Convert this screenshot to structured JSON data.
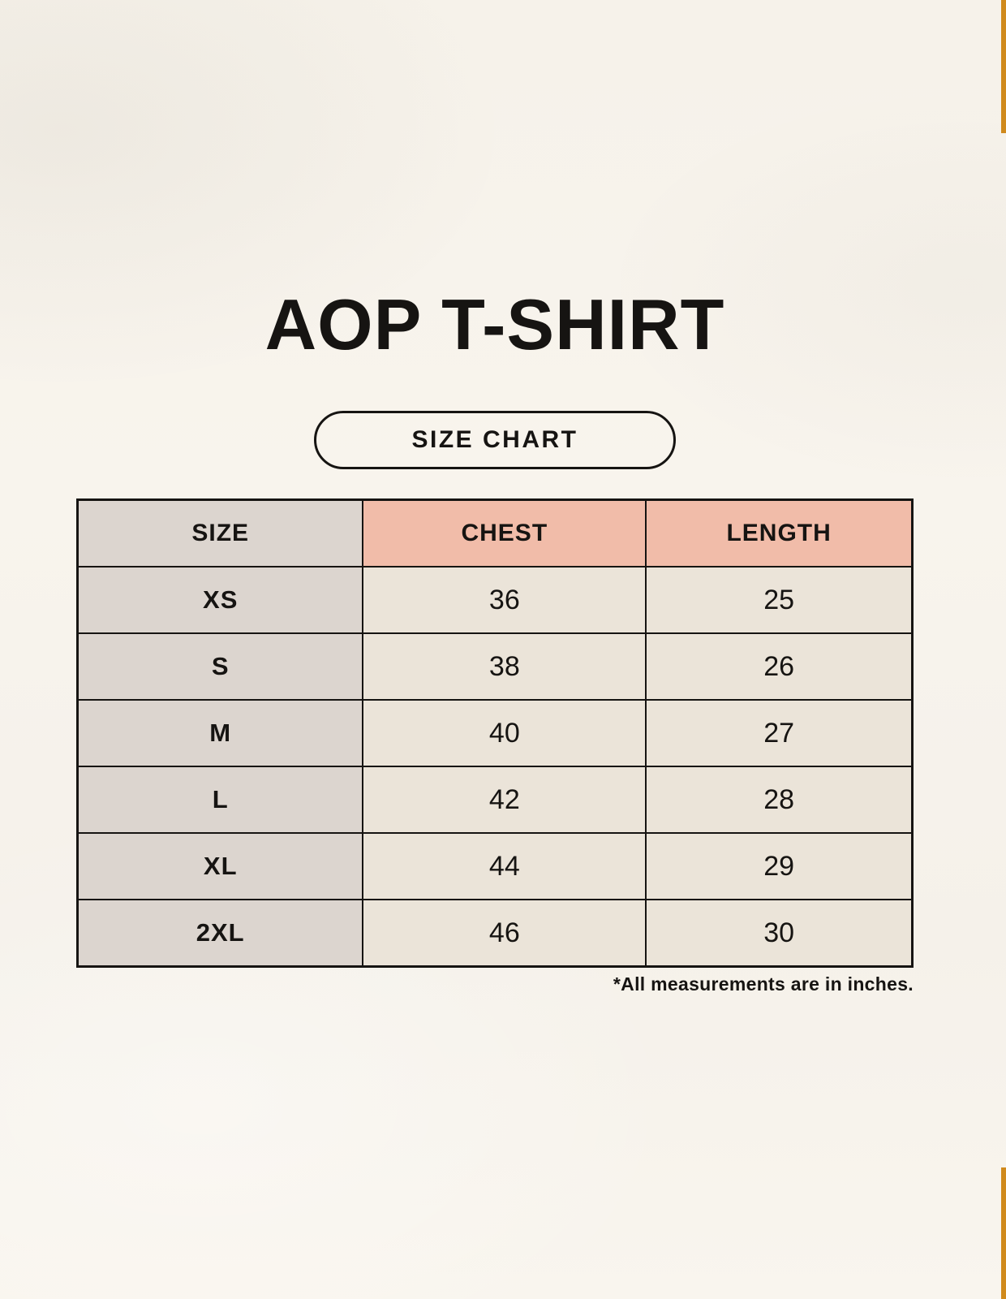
{
  "title": "AOP T-SHIRT",
  "badge": {
    "label": "SIZE CHART"
  },
  "table": {
    "headers": [
      "SIZE",
      "CHEST",
      "LENGTH"
    ],
    "rows": [
      {
        "size": "XS",
        "chest": "36",
        "length": "25"
      },
      {
        "size": "S",
        "chest": "38",
        "length": "26"
      },
      {
        "size": "M",
        "chest": "40",
        "length": "27"
      },
      {
        "size": "L",
        "chest": "42",
        "length": "28"
      },
      {
        "size": "XL",
        "chest": "44",
        "length": "29"
      },
      {
        "size": "2XL",
        "chest": "46",
        "length": "30"
      }
    ]
  },
  "footnote": "*All measurements are in inches.",
  "colors": {
    "background": "#f6f2ea",
    "accent": "#d08a1c",
    "header_highlight": "#f1bca9",
    "size_column": "#dcd5cf",
    "value_cell": "#ebe4d9",
    "border": "#161412",
    "text": "#161412"
  },
  "chart_data": {
    "type": "table",
    "title": "AOP T-SHIRT",
    "subtitle": "SIZE CHART",
    "columns": [
      "SIZE",
      "CHEST",
      "LENGTH"
    ],
    "rows": [
      [
        "XS",
        36,
        25
      ],
      [
        "S",
        38,
        26
      ],
      [
        "M",
        40,
        27
      ],
      [
        "L",
        42,
        28
      ],
      [
        "XL",
        44,
        29
      ],
      [
        "2XL",
        46,
        30
      ]
    ],
    "units": "inches",
    "note": "*All measurements are in inches."
  }
}
